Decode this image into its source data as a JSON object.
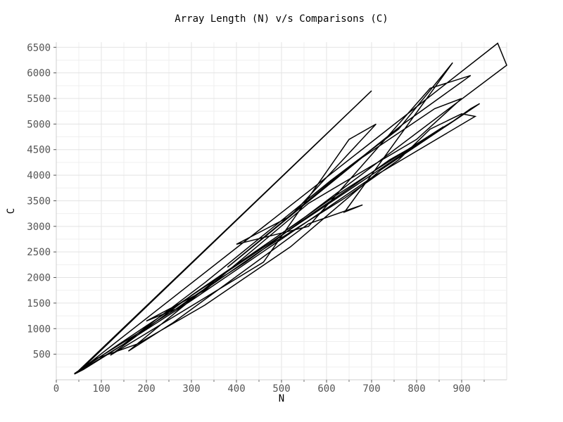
{
  "chart_data": {
    "type": "line",
    "title": "Array Length (N) v/s Comparisons (C)",
    "xlabel": "N",
    "ylabel": "C",
    "xlim": [
      0,
      1000
    ],
    "ylim": [
      0,
      6600
    ],
    "x_ticks": [
      0,
      100,
      200,
      300,
      400,
      500,
      600,
      700,
      800,
      900
    ],
    "y_ticks": [
      500,
      1000,
      1500,
      2000,
      2500,
      3000,
      3500,
      4000,
      4500,
      5000,
      5500,
      6000,
      6500
    ],
    "grid": true,
    "legend": "none",
    "line_color": "#000000",
    "series": [
      {
        "points": [
          [
            40,
            120
          ],
          [
            75,
            330
          ],
          [
            130,
            630
          ],
          [
            180,
            900
          ],
          [
            220,
            1130
          ],
          [
            260,
            1350
          ],
          [
            300,
            1600
          ],
          [
            350,
            1900
          ],
          [
            420,
            2300
          ],
          [
            470,
            2620
          ],
          [
            520,
            2950
          ],
          [
            560,
            3200
          ],
          [
            610,
            3500
          ],
          [
            660,
            3800
          ],
          [
            700,
            4050
          ],
          [
            740,
            4300
          ],
          [
            790,
            4550
          ],
          [
            830,
            4780
          ],
          [
            880,
            5050
          ],
          [
            920,
            5300
          ],
          [
            940,
            5400
          ],
          [
            720,
            4100
          ],
          [
            520,
            2600
          ],
          [
            330,
            1460
          ],
          [
            180,
            700
          ],
          [
            90,
            420
          ],
          [
            50,
            160
          ],
          [
            700,
            5650
          ],
          [
            45,
            140
          ],
          [
            860,
            4950
          ],
          [
            620,
            3600
          ],
          [
            360,
            2000
          ],
          [
            160,
            560
          ],
          [
            260,
            1120
          ],
          [
            560,
            3050
          ],
          [
            680,
            3420
          ],
          [
            640,
            3280
          ],
          [
            880,
            6200
          ],
          [
            760,
            4900
          ],
          [
            610,
            3900
          ],
          [
            330,
            1900
          ],
          [
            150,
            700
          ],
          [
            45,
            130
          ],
          [
            980,
            6580
          ],
          [
            1000,
            6150
          ],
          [
            540,
            3100
          ],
          [
            300,
            1650
          ],
          [
            120,
            480
          ],
          [
            460,
            2300
          ],
          [
            650,
            4700
          ],
          [
            710,
            5000
          ],
          [
            520,
            3200
          ],
          [
            400,
            2650
          ],
          [
            560,
            3000
          ],
          [
            830,
            5700
          ],
          [
            920,
            5950
          ],
          [
            770,
            5000
          ],
          [
            600,
            3800
          ],
          [
            380,
            2200
          ],
          [
            680,
            4350
          ],
          [
            840,
            5300
          ],
          [
            900,
            5500
          ],
          [
            800,
            4700
          ],
          [
            560,
            3450
          ],
          [
            330,
            1750
          ],
          [
            200,
            1150
          ],
          [
            270,
            1400
          ],
          [
            450,
            2500
          ],
          [
            640,
            3550
          ],
          [
            760,
            4300
          ],
          [
            830,
            4900
          ],
          [
            900,
            5200
          ],
          [
            930,
            5150
          ],
          [
            700,
            3950
          ],
          [
            500,
            2750
          ],
          [
            300,
            1550
          ],
          [
            120,
            530
          ],
          [
            60,
            200
          ],
          [
            40,
            110
          ]
        ]
      }
    ]
  }
}
